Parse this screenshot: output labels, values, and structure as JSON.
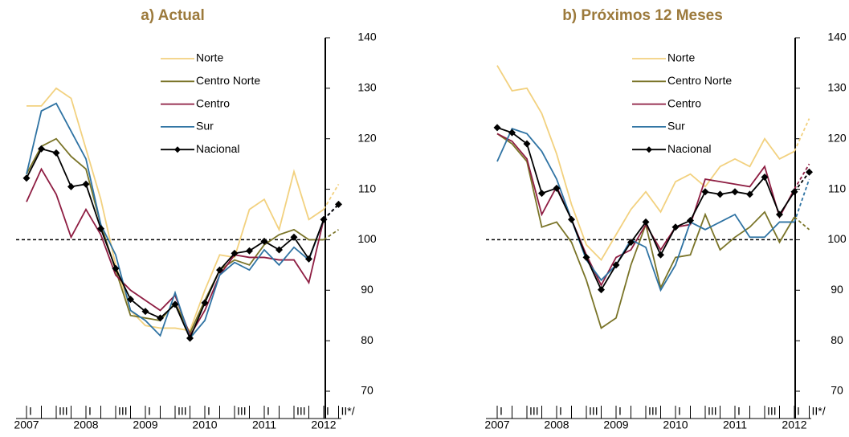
{
  "chart_data": [
    {
      "type": "line",
      "title": "a) Actual",
      "categories": [
        "I",
        null,
        "III",
        null,
        "I",
        null,
        "III",
        null,
        "I",
        null,
        "III",
        null,
        "I",
        null,
        "III",
        null,
        "I",
        null,
        "III",
        null,
        "I",
        "II*/"
      ],
      "year_labels": [
        "2007",
        "2008",
        "2009",
        "2010",
        "2011",
        "2012"
      ],
      "ylim": [
        70,
        140
      ],
      "yticks": [
        70,
        80,
        90,
        100,
        110,
        120,
        130,
        140
      ],
      "reference_line": 100,
      "projected_last_point": true,
      "legend": "upper center",
      "series": [
        {
          "name": "Norte",
          "color": "#f2d17f",
          "values": [
            126.5,
            126.5,
            130,
            128,
            118,
            108,
            95,
            86,
            83,
            82.5,
            82.5,
            82,
            90,
            97,
            96.5,
            106,
            108,
            102,
            113.5,
            104,
            106,
            111
          ]
        },
        {
          "name": "Centro Norte",
          "color": "#7a7428",
          "values": [
            113,
            118.5,
            120,
            116.5,
            114,
            103,
            94,
            85,
            84.5,
            84,
            87.5,
            81.5,
            88,
            94,
            96,
            95,
            99,
            101,
            102,
            100,
            100,
            102
          ]
        },
        {
          "name": "Centro",
          "color": "#8e1d42",
          "values": [
            107.5,
            114,
            109,
            100.5,
            106,
            101,
            93,
            90,
            88,
            86,
            89,
            81,
            86,
            93,
            97,
            96.5,
            96.5,
            96,
            96,
            91.5,
            104,
            107
          ]
        },
        {
          "name": "Sur",
          "color": "#2f73a3",
          "values": [
            113,
            125.5,
            127,
            121.5,
            116,
            103,
            97,
            86,
            84,
            81,
            89.5,
            80.5,
            84,
            93,
            95.5,
            94,
            98,
            95,
            98.5,
            96,
            104,
            107
          ]
        },
        {
          "name": "Nacional",
          "color": "#000000",
          "marker": "diamond",
          "values": [
            112.2,
            118,
            117.2,
            110.5,
            111,
            102.2,
            94.3,
            88.2,
            85.8,
            84.5,
            87.2,
            80.5,
            87.5,
            94,
            97.3,
            97.8,
            99.7,
            98,
            100.5,
            96.2,
            104,
            107
          ]
        }
      ]
    },
    {
      "type": "line",
      "title": "b) Próximos 12 Meses",
      "categories": [
        "I",
        null,
        "III",
        null,
        "I",
        null,
        "III",
        null,
        "I",
        null,
        "III",
        null,
        "I",
        null,
        "III",
        null,
        "I",
        null,
        "III",
        null,
        "I",
        "II*/"
      ],
      "year_labels": [
        "2007",
        "2008",
        "2009",
        "2010",
        "2011",
        "2012"
      ],
      "ylim": [
        70,
        140
      ],
      "yticks": [
        70,
        80,
        90,
        100,
        110,
        120,
        130,
        140
      ],
      "reference_line": 100,
      "projected_last_point": true,
      "legend": "upper center",
      "series": [
        {
          "name": "Norte",
          "color": "#f2d17f",
          "values": [
            134.5,
            129.5,
            130,
            125,
            117,
            107,
            99,
            96,
            101,
            106,
            109.5,
            105.5,
            111.5,
            113,
            110.5,
            114.5,
            116,
            114.5,
            120,
            116,
            117.5,
            124
          ]
        },
        {
          "name": "Centro Norte",
          "color": "#7a7428",
          "values": [
            121,
            119,
            115.5,
            102.5,
            103.5,
            99.5,
            92,
            82.5,
            84.5,
            95,
            103,
            90.5,
            96.5,
            97,
            105,
            98,
            100.5,
            102.5,
            105.5,
            99.5,
            104.5,
            102
          ]
        },
        {
          "name": "Centro",
          "color": "#8e1d42",
          "values": [
            121,
            119.5,
            116,
            105,
            110.5,
            104,
            97,
            91,
            96.5,
            98,
            103,
            98,
            102.5,
            103,
            112,
            111.5,
            111,
            110.5,
            114.5,
            104.5,
            110,
            115
          ]
        },
        {
          "name": "Sur",
          "color": "#2f73a3",
          "values": [
            115.5,
            122,
            121,
            117.5,
            112,
            104,
            96,
            92,
            95,
            100,
            98.5,
            90,
            95,
            103.5,
            102,
            103.5,
            105,
            100.5,
            100.5,
            103.5,
            103.5,
            112
          ]
        },
        {
          "name": "Nacional",
          "color": "#000000",
          "marker": "diamond",
          "values": [
            122.2,
            121.2,
            119,
            109.2,
            110.2,
            104,
            96.5,
            90.1,
            95,
            99.5,
            103.5,
            97,
            102.5,
            103.8,
            109.5,
            109,
            109.5,
            109,
            112.4,
            105,
            109.5,
            113.4
          ]
        }
      ]
    }
  ]
}
